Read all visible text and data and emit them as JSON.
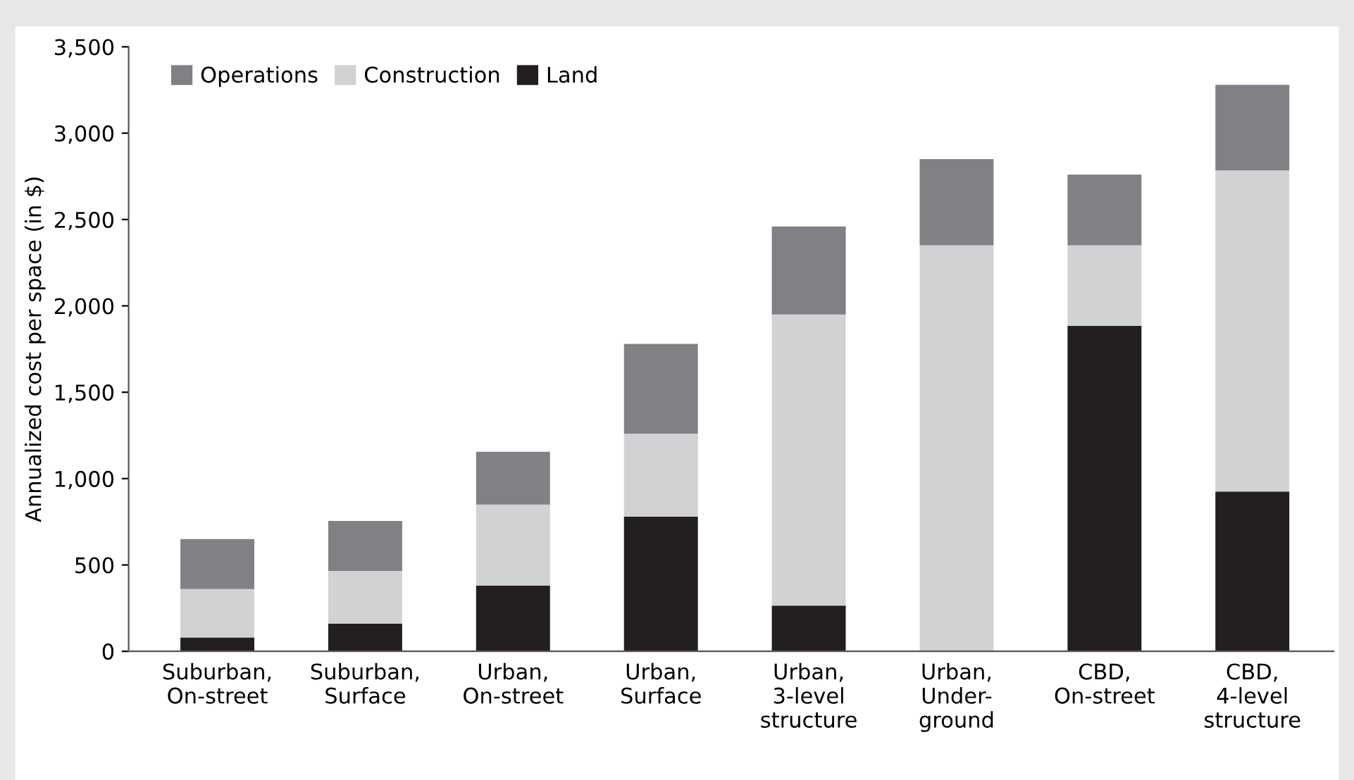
{
  "chart_data": {
    "type": "bar",
    "stacked": true,
    "ylabel": "Annualized cost per space (in $)",
    "categories": [
      "Suburban,\nOn-street",
      "Suburban,\nSurface",
      "Urban,\nOn-street",
      "Urban,\nSurface",
      "Urban,\n3-level\nstructure",
      "Urban,\nUnder-\nground",
      "CBD,\nOn-street",
      "CBD,\n4-level\nstructure"
    ],
    "series": [
      {
        "name": "Land",
        "color": "#231f20",
        "values": [
          80,
          160,
          380,
          780,
          265,
          0,
          1885,
          925
        ]
      },
      {
        "name": "Construction",
        "color": "#d1d2d4",
        "values": [
          280,
          305,
          470,
          480,
          1685,
          2350,
          465,
          1860
        ]
      },
      {
        "name": "Operations",
        "color": "#808185",
        "values": [
          290,
          290,
          305,
          520,
          510,
          500,
          410,
          495
        ]
      }
    ],
    "ylim": [
      0,
      3500
    ],
    "yticks": [
      {
        "value": 0,
        "label": "0"
      },
      {
        "value": 500,
        "label": "500"
      },
      {
        "value": 1000,
        "label": "1,000"
      },
      {
        "value": 1500,
        "label": "1,500"
      },
      {
        "value": 2000,
        "label": "2,000"
      },
      {
        "value": 2500,
        "label": "2,500"
      },
      {
        "value": 3000,
        "label": "3,000"
      },
      {
        "value": 3500,
        "label": "3,500"
      }
    ],
    "grid": false,
    "legend": "top left"
  }
}
